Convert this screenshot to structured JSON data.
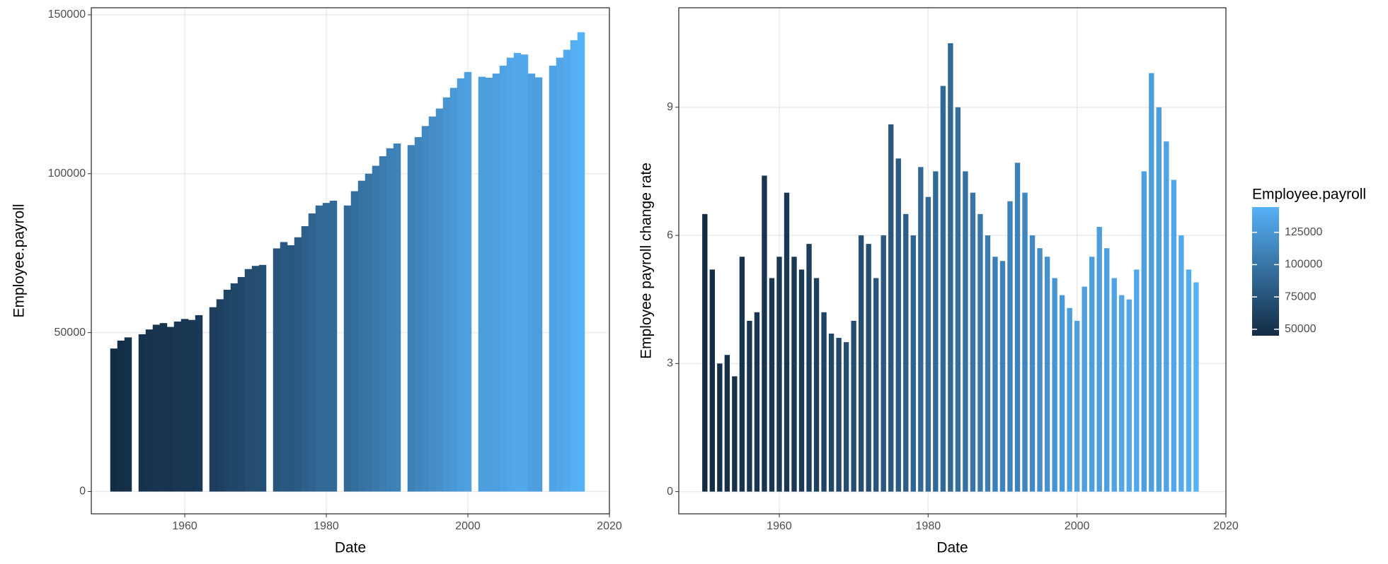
{
  "chart_data": [
    {
      "type": "bar",
      "x_label": "Date",
      "y_label": "Employee.payroll",
      "x": [
        1950,
        1951,
        1952,
        1953,
        1954,
        1955,
        1956,
        1957,
        1958,
        1959,
        1960,
        1961,
        1962,
        1963,
        1964,
        1965,
        1966,
        1967,
        1968,
        1969,
        1970,
        1971,
        1972,
        1973,
        1974,
        1975,
        1976,
        1977,
        1978,
        1979,
        1980,
        1981,
        1982,
        1983,
        1984,
        1985,
        1986,
        1987,
        1988,
        1989,
        1990,
        1991,
        1992,
        1993,
        1994,
        1995,
        1996,
        1997,
        1998,
        1999,
        2000,
        2001,
        2002,
        2003,
        2004,
        2005,
        2006,
        2007,
        2008,
        2009,
        2010,
        2011,
        2012,
        2013,
        2014,
        2015,
        2016
      ],
      "values": [
        45000,
        47500,
        48500,
        null,
        49500,
        51000,
        52500,
        53000,
        51800,
        53500,
        54300,
        54000,
        55500,
        null,
        58000,
        60500,
        63500,
        65500,
        67500,
        70000,
        71000,
        71300,
        null,
        76500,
        78500,
        77500,
        80000,
        83500,
        87500,
        90000,
        90800,
        91500,
        null,
        90000,
        94500,
        97800,
        100000,
        102500,
        105500,
        108000,
        109500,
        null,
        109000,
        111500,
        115000,
        118000,
        120500,
        124000,
        127000,
        130000,
        132000,
        null,
        130500,
        130200,
        131500,
        134000,
        136500,
        138000,
        137500,
        131500,
        130300,
        null,
        134000,
        136500,
        139000,
        142000,
        144500
      ],
      "xlim": [
        1946.8,
        2020
      ],
      "xticks": [
        1960,
        1980,
        2000,
        2020
      ],
      "ylim": [
        -7000,
        152200
      ],
      "yticks": [
        0,
        50000,
        100000,
        150000
      ],
      "grid": true
    },
    {
      "type": "bar",
      "x_label": "Date",
      "y_label": "Employee payroll change rate",
      "x": [
        1950,
        1951,
        1952,
        1953,
        1954,
        1955,
        1956,
        1957,
        1958,
        1959,
        1960,
        1961,
        1962,
        1963,
        1964,
        1965,
        1966,
        1967,
        1968,
        1969,
        1970,
        1971,
        1972,
        1973,
        1974,
        1975,
        1976,
        1977,
        1978,
        1979,
        1980,
        1981,
        1982,
        1983,
        1984,
        1985,
        1986,
        1987,
        1988,
        1989,
        1990,
        1991,
        1992,
        1993,
        1994,
        1995,
        1996,
        1997,
        1998,
        1999,
        2000,
        2001,
        2002,
        2003,
        2004,
        2005,
        2006,
        2007,
        2008,
        2009,
        2010,
        2011,
        2012,
        2013,
        2014,
        2015,
        2016
      ],
      "values": [
        6.5,
        5.2,
        3.0,
        3.2,
        2.7,
        5.5,
        4.0,
        4.2,
        7.4,
        5.0,
        5.5,
        7.0,
        5.5,
        5.2,
        5.8,
        5.0,
        4.2,
        3.7,
        3.6,
        3.5,
        4.0,
        6.0,
        5.8,
        5.0,
        6.0,
        8.6,
        7.8,
        6.5,
        6.0,
        7.6,
        6.9,
        7.5,
        9.5,
        10.5,
        9.0,
        7.5,
        7.0,
        6.5,
        6.0,
        5.5,
        5.4,
        6.8,
        7.7,
        7.0,
        6.0,
        5.7,
        5.5,
        5.0,
        4.6,
        4.3,
        4.0,
        4.8,
        5.5,
        6.2,
        5.7,
        5.0,
        4.6,
        4.5,
        5.2,
        7.5,
        9.8,
        9.0,
        8.2,
        7.3,
        6.0,
        5.2,
        4.9
      ],
      "xlim": [
        1946.5,
        2020
      ],
      "xticks": [
        1960,
        1980,
        2000,
        2020
      ],
      "ylim": [
        -0.52,
        11.33
      ],
      "yticks": [
        0,
        3,
        6,
        9
      ],
      "grid": true,
      "legend": {
        "title": "Employee.payroll",
        "ticks": [
          50000,
          75000,
          100000,
          125000
        ],
        "colors": [
          "#132B43",
          "#56B1F7"
        ]
      }
    }
  ]
}
